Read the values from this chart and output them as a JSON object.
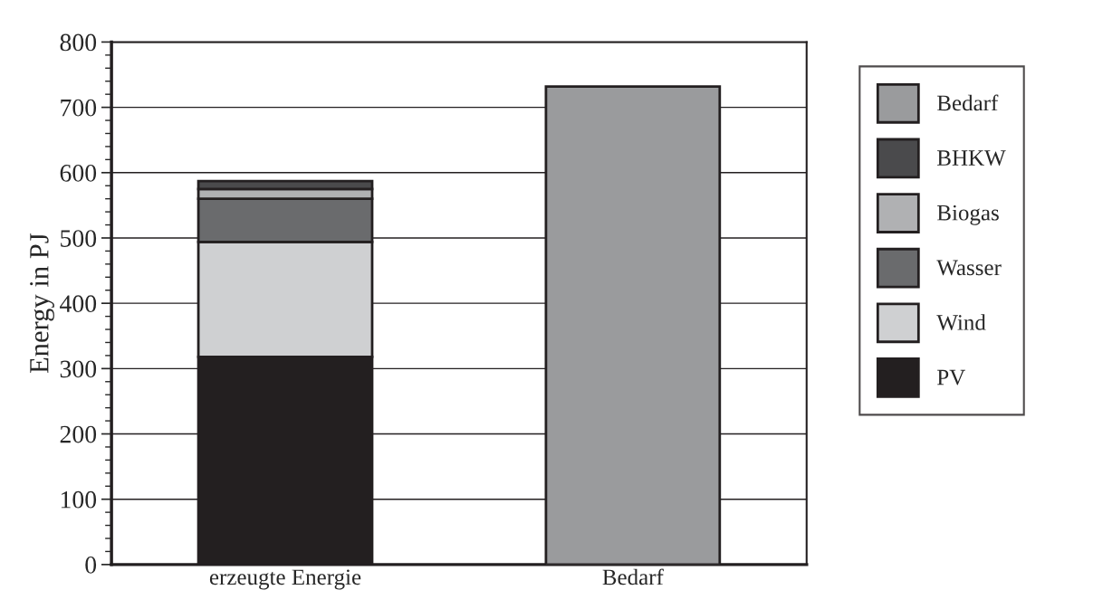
{
  "chart_data": {
    "type": "bar",
    "ylabel": "Energy in PJ",
    "categories": [
      "erzeugte Energie",
      "Bedarf"
    ],
    "stacked": true,
    "series": [
      {
        "name": "PV",
        "color": "#231f20",
        "values": [
          318,
          null
        ]
      },
      {
        "name": "Wind",
        "color": "#cfd0d2",
        "values": [
          176,
          null
        ]
      },
      {
        "name": "Wasser",
        "color": "#6a6b6d",
        "values": [
          66,
          null
        ]
      },
      {
        "name": "Biogas",
        "color": "#b0b1b3",
        "values": [
          15,
          null
        ]
      },
      {
        "name": "BHKW",
        "color": "#4a4a4c",
        "values": [
          12,
          null
        ]
      },
      {
        "name": "Bedarf",
        "color": "#9a9b9d",
        "values": [
          null,
          732
        ]
      }
    ],
    "ylim": [
      0,
      800
    ],
    "yticks": [
      0,
      100,
      200,
      300,
      400,
      500,
      600,
      700,
      800
    ],
    "grid": "y",
    "legend": "right"
  }
}
